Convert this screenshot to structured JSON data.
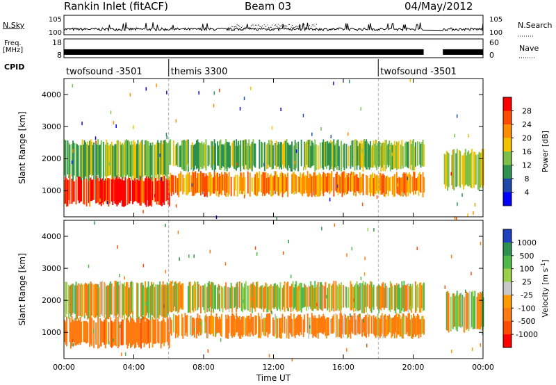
{
  "header": {
    "station": "Rankin Inlet (fitACF)",
    "beam": "Beam 03",
    "date": "04/May/2012"
  },
  "panels": {
    "nsky_label": "N.Sky",
    "nsearch_label": "N.Search",
    "freq_label_line1": "Freq.",
    "freq_label_line2": "[MHz]",
    "nave_label": "Nave",
    "cpid_label": "CPID"
  },
  "chart_data": [
    {
      "type": "line",
      "name": "noise",
      "series": [
        {
          "name": "N.Sky"
        },
        {
          "name": "N.Search"
        }
      ],
      "ytick_labels": [
        "10^5",
        "10^0"
      ],
      "ytick_labels_right": [
        "10^5",
        "10^0"
      ],
      "xlim": [
        "00:00",
        "00:00"
      ],
      "gaps_hours": [
        [
          20.6,
          21.7
        ]
      ]
    },
    {
      "type": "line",
      "name": "frequency-nave",
      "series": [
        {
          "name": "Freq.",
          "value": 11
        },
        {
          "name": "Nave",
          "value": 25
        }
      ],
      "ylim_left": [
        8,
        18
      ],
      "ylim_right": [
        0,
        60
      ],
      "ytick_labels": [
        "18",
        "8"
      ],
      "ytick_labels_right": [
        "60",
        "0"
      ]
    },
    {
      "type": "table",
      "name": "cpid",
      "segments": [
        {
          "start_hour": 0,
          "label": "twofsound -3501"
        },
        {
          "start_hour": 6.0,
          "label": "themis 3300"
        },
        {
          "start_hour": 18.0,
          "label": "twofsound -3501"
        }
      ]
    },
    {
      "type": "heatmap",
      "name": "power",
      "ylabel": "Slant Range [km]",
      "ylim": [
        180,
        4500
      ],
      "yticks": [
        1000,
        2000,
        3000,
        4000
      ],
      "colorbar_label": "Power [dB]",
      "colorbar_ticks": [
        "28",
        "24",
        "20",
        "16",
        "12",
        "8",
        "4"
      ],
      "colorbar_colors": [
        "#ff0000",
        "#ff4a00",
        "#ff8c00",
        "#f2c200",
        "#7cc04a",
        "#2f8f4f",
        "#1f48a8",
        "#0000ff"
      ],
      "echo_bands": [
        {
          "range_km": [
            600,
            1400
          ],
          "hours": [
            0.0,
            6.0
          ],
          "power_db": 28
        },
        {
          "range_km": [
            1400,
            2500
          ],
          "hours": [
            0.0,
            6.0
          ],
          "power_db": 14
        },
        {
          "range_km": [
            900,
            1500
          ],
          "hours": [
            6.0,
            20.6
          ],
          "power_db": 22
        },
        {
          "range_km": [
            1700,
            2500
          ],
          "hours": [
            6.0,
            20.6
          ],
          "power_db": 13
        },
        {
          "range_km": [
            1100,
            2200
          ],
          "hours": [
            21.7,
            24.0
          ],
          "power_db": 16
        }
      ]
    },
    {
      "type": "heatmap",
      "name": "velocity",
      "ylabel": "Slant Range [km]",
      "xlabel": "Time UT",
      "xticks": [
        "00:00",
        "04:00",
        "08:00",
        "12:00",
        "16:00",
        "20:00",
        "00:00"
      ],
      "ylim": [
        180,
        4500
      ],
      "yticks": [
        1000,
        2000,
        3000,
        4000
      ],
      "colorbar_label": "Velocity [m s^-1]",
      "colorbar_ticks": [
        "1000",
        "500",
        "100",
        "25",
        "-25",
        "-100",
        "-500",
        "-1000"
      ],
      "colorbar_colors": [
        "#2040c0",
        "#2f8f4f",
        "#4fb84a",
        "#9ad04a",
        "#c8c8c8",
        "#ff9a00",
        "#ff7a10",
        "#ff4a00",
        "#ff0000"
      ],
      "echo_bands": [
        {
          "range_km": [
            600,
            1400
          ],
          "hours": [
            0.0,
            6.0
          ],
          "velocity_ms": -300
        },
        {
          "range_km": [
            1500,
            2500
          ],
          "hours": [
            0.0,
            6.0
          ],
          "velocity_ms": 0
        },
        {
          "range_km": [
            900,
            1500
          ],
          "hours": [
            6.0,
            20.6
          ],
          "velocity_ms": -200
        },
        {
          "range_km": [
            1700,
            2500
          ],
          "hours": [
            6.0,
            20.6
          ],
          "velocity_ms": 0
        },
        {
          "range_km": [
            1100,
            2200
          ],
          "hours": [
            21.7,
            24.0
          ],
          "velocity_ms": 0
        }
      ]
    }
  ]
}
